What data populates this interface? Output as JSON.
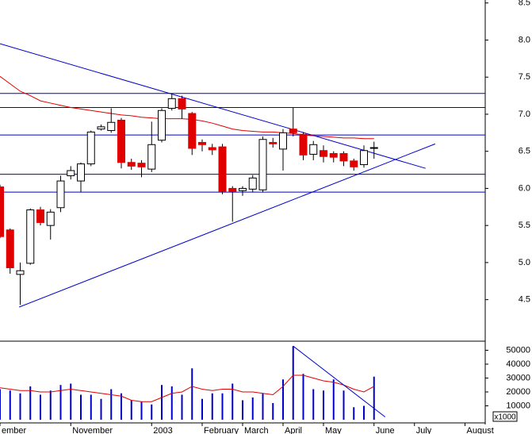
{
  "chart_data": [
    {
      "type": "candlestick",
      "categories": [
        "ember",
        null,
        null,
        null,
        null,
        null,
        null,
        "November",
        null,
        null,
        null,
        null,
        null,
        null,
        null,
        "2003",
        null,
        null,
        null,
        null,
        "February",
        null,
        null,
        null,
        "March",
        null,
        null,
        null,
        "April",
        null,
        null,
        null,
        "May",
        null,
        null,
        null,
        null,
        "June",
        null,
        null,
        null,
        "July",
        null,
        null,
        null,
        null,
        "August",
        null
      ],
      "open": [
        6.02,
        5.44,
        4.84,
        4.99,
        5.71,
        5.5,
        5.74,
        6.17,
        6.1,
        6.33,
        6.8,
        6.78,
        6.92,
        6.35,
        6.34,
        6.26,
        6.65,
        7.08,
        7.21,
        7.01,
        6.62,
        6.55,
        6.56,
        6.0,
        5.97,
        5.99,
        5.98,
        6.62,
        6.53,
        6.8,
        6.73,
        6.46,
        6.51,
        6.47,
        6.47,
        6.37,
        6.32,
        6.55,
        null,
        null,
        null,
        null,
        null,
        null,
        null,
        null,
        null,
        null
      ],
      "high": [
        6.05,
        5.46,
        5.0,
        5.73,
        5.75,
        5.72,
        6.17,
        6.3,
        6.35,
        6.78,
        6.86,
        7.08,
        6.95,
        6.4,
        6.38,
        6.9,
        7.08,
        7.28,
        7.25,
        7.03,
        6.66,
        6.6,
        6.6,
        6.03,
        6.03,
        6.18,
        6.7,
        6.68,
        6.8,
        7.09,
        6.76,
        6.64,
        6.58,
        6.5,
        6.5,
        6.4,
        6.58,
        6.63,
        null,
        null,
        null,
        null,
        null,
        null,
        null,
        null,
        null,
        null
      ],
      "low": [
        5.33,
        4.85,
        4.43,
        4.97,
        5.5,
        5.31,
        5.68,
        6.12,
        5.95,
        6.3,
        6.78,
        6.75,
        6.27,
        6.25,
        6.15,
        6.22,
        6.62,
        7.05,
        6.94,
        6.45,
        6.5,
        6.45,
        5.92,
        5.55,
        5.9,
        5.95,
        5.95,
        6.55,
        6.24,
        6.7,
        6.38,
        6.38,
        6.35,
        6.35,
        6.3,
        6.24,
        6.28,
        6.4,
        null,
        null,
        null,
        null,
        null,
        null,
        null,
        null,
        null,
        null
      ],
      "close": [
        5.35,
        4.93,
        4.89,
        5.71,
        5.54,
        5.68,
        6.1,
        6.24,
        6.33,
        6.76,
        6.83,
        6.89,
        6.35,
        6.3,
        6.29,
        6.59,
        7.05,
        7.21,
        7.07,
        6.54,
        6.59,
        6.52,
        5.96,
        5.96,
        6.0,
        6.14,
        6.66,
        6.6,
        6.75,
        6.75,
        6.45,
        6.59,
        6.43,
        6.42,
        6.37,
        6.29,
        6.51,
        6.55,
        null,
        null,
        null,
        null,
        null,
        null,
        null,
        null,
        null,
        null
      ],
      "ma": [
        7.51,
        7.41,
        7.31,
        7.25,
        7.18,
        7.15,
        7.12,
        7.09,
        7.07,
        7.05,
        7.03,
        7.01,
        6.99,
        6.98,
        6.96,
        6.95,
        6.94,
        6.94,
        6.94,
        6.93,
        6.91,
        6.88,
        6.84,
        6.8,
        6.78,
        6.77,
        6.76,
        6.76,
        6.75,
        6.74,
        6.72,
        6.71,
        6.7,
        6.69,
        6.68,
        6.68,
        6.67,
        6.67,
        null,
        null,
        null,
        null,
        null,
        null,
        null,
        null,
        null,
        null
      ],
      "up_color": "#ffffff",
      "down_color": "#e00000",
      "ma_color": "#e00000",
      "line_color": "#0000cc",
      "hlines": [
        7.28,
        7.09,
        6.72,
        6.19,
        5.95
      ],
      "trendlines": [
        {
          "x": [
            0,
            42.1
          ],
          "y": [
            7.95,
            6.27
          ]
        },
        {
          "x": [
            1.9,
            43.05
          ],
          "y": [
            4.4,
            6.6
          ]
        }
      ],
      "ylim": [
        3.94,
        8.54
      ],
      "yticks": [
        4.5,
        {
          "value": 5,
          "label": "5.0"
        },
        5.5,
        {
          "value": 6,
          "label": "6.0"
        },
        6.5,
        {
          "value": 7,
          "label": "7.0"
        },
        7.5,
        {
          "value": 8,
          "label": "8.0"
        },
        8.5
      ]
    },
    {
      "type": "bar",
      "color": "#0000cc",
      "ma_color": "#e00000",
      "values": [
        22000,
        21000,
        19000,
        24000,
        18000,
        21000,
        25000,
        26000,
        18000,
        18000,
        15000,
        22000,
        19000,
        14000,
        13000,
        11000,
        25000,
        24000,
        18000,
        37000,
        15000,
        19000,
        19000,
        26000,
        14000,
        16000,
        19000,
        12000,
        29000,
        53000,
        33000,
        22000,
        21000,
        29000,
        21000,
        9000,
        10000,
        31000,
        null,
        null,
        null,
        null,
        null,
        null,
        null,
        null,
        null,
        null
      ],
      "ma": [
        23000,
        22000,
        21000,
        21000,
        20000,
        20000,
        21000,
        22000,
        21000,
        20000,
        19000,
        18000,
        17000,
        14000,
        13000,
        13000,
        16000,
        19000,
        20000,
        24000,
        22000,
        21000,
        22000,
        22000,
        20000,
        20000,
        19000,
        18000,
        24000,
        32000,
        32000,
        30000,
        28000,
        27000,
        25000,
        22000,
        20000,
        24000,
        null,
        null,
        null,
        null,
        null,
        null,
        null,
        null,
        null,
        null
      ],
      "trendlines": [
        {
          "x": [
            29,
            38.1
          ],
          "y": [
            53000,
            2000
          ]
        }
      ],
      "unit_label": "x1000",
      "ylim": [
        0,
        55400
      ],
      "yticks": [
        10000,
        20000,
        30000,
        40000,
        50000
      ]
    }
  ]
}
